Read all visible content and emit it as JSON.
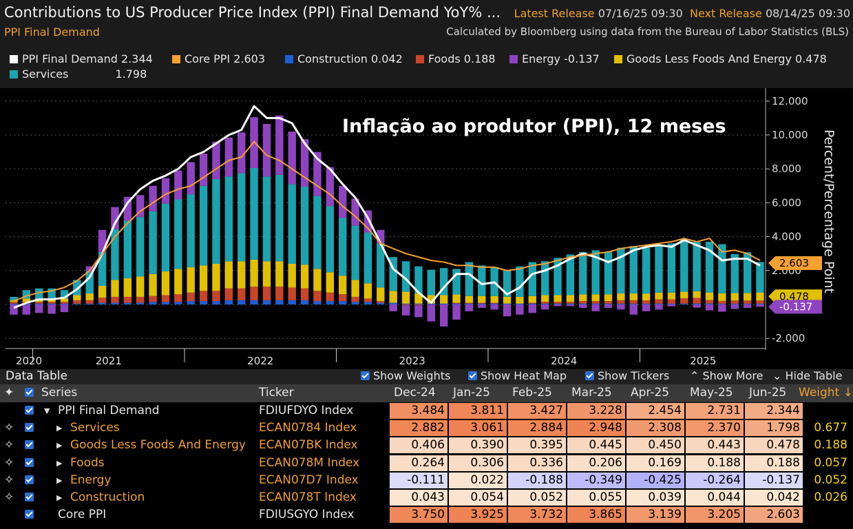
{
  "header": {
    "title": "Contributions to US Producer Price Index (PPI) Final Demand YoY% ...",
    "latest_label": "Latest Release",
    "latest_value": "07/16/25 09:30",
    "next_label": "Next Release",
    "next_value": "08/14/25 09:30",
    "subtitle": "PPI Final Demand",
    "calculated": "Calculated by Bloomberg using data from the Bureau of Labor Statistics (BLS)"
  },
  "legend": [
    {
      "name": "PPI Final Demand",
      "value": "2.344",
      "color": "#ffffff"
    },
    {
      "name": "Core PPI",
      "value": "2.603",
      "color": "#f5a030"
    },
    {
      "name": "Construction",
      "value": "0.042",
      "color": "#1f5fd6"
    },
    {
      "name": "Foods",
      "value": "0.188",
      "color": "#c8452a"
    },
    {
      "name": "Energy",
      "value": "-0.137",
      "color": "#8e44c0"
    },
    {
      "name": "Goods Less Foods And Energy",
      "value": "0.478",
      "color": "#e0c000"
    },
    {
      "name": "Services",
      "value": "1.798",
      "color": "#1ba3b0"
    }
  ],
  "overlay_text": "Inflação ao produtor (PPI), 12 meses",
  "chart_data": {
    "type": "bar",
    "stacked": true,
    "ylabel": "Percent/Percentage Point",
    "ylim": [
      -2.6,
      12.6
    ],
    "yticks": [
      "12.000",
      "10.000",
      "8.000",
      "6.000",
      "4.000",
      "2.000",
      "-2.000"
    ],
    "xticks": [
      "2020",
      "2021",
      "2022",
      "2023",
      "2024",
      "2025"
    ],
    "axis_tags": [
      {
        "value": "2.603",
        "color": "#f5a030",
        "text_color": "#000000"
      },
      {
        "value": "0.478",
        "color": "#e0c000",
        "text_color": "#000000"
      },
      {
        "value": "-0.137",
        "color": "#8e44c0",
        "text_color": "#ffffff"
      }
    ],
    "series_order": [
      "Construction",
      "Foods",
      "Goods Less Foods And Energy",
      "Services",
      "Energy"
    ],
    "series": [
      {
        "name": "Services",
        "color": "#1ba3b0",
        "values": [
          0.2,
          0.5,
          0.6,
          0.6,
          0.5,
          0.9,
          1.3,
          2.0,
          3.0,
          3.4,
          3.5,
          3.7,
          4.0,
          4.1,
          4.3,
          4.7,
          5.0,
          5.0,
          5.2,
          5.4,
          5.0,
          5.1,
          4.7,
          4.6,
          4.3,
          3.9,
          3.4,
          3.2,
          3.0,
          2.6,
          2.0,
          1.8,
          1.6,
          1.5,
          1.6,
          1.5,
          2.0,
          1.8,
          1.7,
          1.6,
          1.8,
          2.0,
          2.0,
          2.2,
          2.4,
          2.5,
          2.6,
          2.5,
          2.7,
          2.8,
          2.7,
          2.8,
          2.9,
          3.1,
          2.9,
          3.0,
          2.9,
          2.3,
          2.4,
          1.8
        ]
      },
      {
        "name": "Goods Less Foods And Energy",
        "color": "#e0c000",
        "values": [
          0.1,
          0.2,
          0.2,
          0.2,
          0.2,
          0.3,
          0.4,
          0.7,
          1.0,
          1.1,
          1.2,
          1.3,
          1.4,
          1.5,
          1.5,
          1.5,
          1.6,
          1.6,
          1.6,
          1.6,
          1.5,
          1.5,
          1.4,
          1.4,
          1.3,
          1.2,
          1.1,
          1.0,
          0.9,
          0.8,
          0.7,
          0.7,
          0.6,
          0.5,
          0.5,
          0.5,
          0.4,
          0.4,
          0.4,
          0.4,
          0.4,
          0.4,
          0.4,
          0.4,
          0.4,
          0.4,
          0.4,
          0.4,
          0.4,
          0.4,
          0.4,
          0.4,
          0.4,
          0.39,
          0.395,
          0.445,
          0.45,
          0.443,
          0.45,
          0.478
        ]
      },
      {
        "name": "Foods",
        "color": "#c8452a",
        "values": [
          0.1,
          0.1,
          0.1,
          0.1,
          0.1,
          0.2,
          0.2,
          0.3,
          0.35,
          0.35,
          0.35,
          0.35,
          0.4,
          0.45,
          0.5,
          0.6,
          0.6,
          0.7,
          0.7,
          0.8,
          0.8,
          0.8,
          0.75,
          0.7,
          0.6,
          0.5,
          0.4,
          0.3,
          0.2,
          0.1,
          0.0,
          -0.05,
          -0.05,
          0.0,
          0.0,
          0.05,
          0.05,
          0.05,
          0.05,
          0.0,
          0.0,
          0.05,
          0.1,
          0.1,
          0.1,
          0.15,
          0.15,
          0.15,
          0.2,
          0.2,
          0.2,
          0.25,
          0.26,
          0.306,
          0.336,
          0.206,
          0.169,
          0.188,
          0.19,
          0.188
        ]
      },
      {
        "name": "Construction",
        "color": "#1f5fd6",
        "values": [
          0.05,
          0.05,
          0.05,
          0.05,
          0.05,
          0.05,
          0.05,
          0.1,
          0.1,
          0.1,
          0.1,
          0.15,
          0.15,
          0.15,
          0.2,
          0.2,
          0.2,
          0.25,
          0.25,
          0.25,
          0.25,
          0.25,
          0.25,
          0.25,
          0.2,
          0.2,
          0.2,
          0.15,
          0.15,
          0.1,
          0.1,
          0.05,
          0.05,
          0.05,
          0.05,
          0.05,
          0.05,
          0.05,
          0.05,
          0.05,
          0.05,
          0.05,
          0.05,
          0.05,
          0.05,
          0.05,
          0.05,
          0.05,
          0.05,
          0.05,
          0.045,
          0.05,
          0.043,
          0.054,
          0.052,
          0.055,
          0.039,
          0.044,
          0.04,
          0.042
        ]
      },
      {
        "name": "Energy",
        "color": "#8e44c0",
        "values": [
          -0.6,
          -0.6,
          -0.5,
          -0.55,
          -0.45,
          0.0,
          0.3,
          1.3,
          1.3,
          1.4,
          1.3,
          1.5,
          1.5,
          1.7,
          1.9,
          1.9,
          2.2,
          2.3,
          2.4,
          3.0,
          3.1,
          3.5,
          3.1,
          2.8,
          2.6,
          2.3,
          1.9,
          1.6,
          1.3,
          0.8,
          -0.4,
          -0.6,
          -0.7,
          -1.0,
          -1.3,
          -0.9,
          -0.4,
          -0.2,
          -0.3,
          -0.7,
          -0.6,
          -0.5,
          -0.3,
          -0.1,
          -0.1,
          -0.2,
          -0.4,
          -0.2,
          -0.3,
          -0.6,
          -0.4,
          -0.3,
          -0.111,
          0.022,
          -0.188,
          -0.349,
          -0.425,
          -0.264,
          -0.2,
          -0.137
        ]
      }
    ],
    "lines": [
      {
        "name": "PPI Final Demand",
        "color": "#ffffff",
        "values": [
          -0.2,
          0.1,
          0.3,
          0.3,
          0.4,
          0.9,
          1.6,
          3.0,
          4.8,
          6.0,
          6.8,
          7.3,
          7.6,
          8.0,
          8.7,
          9.0,
          9.5,
          10.0,
          10.3,
          11.7,
          11.0,
          11.0,
          10.7,
          9.5,
          8.6,
          8.0,
          7.1,
          6.3,
          5.1,
          3.6,
          2.1,
          1.5,
          0.7,
          0.1,
          1.0,
          1.8,
          1.8,
          1.2,
          1.3,
          0.6,
          1.0,
          1.8,
          2.0,
          2.3,
          2.7,
          3.0,
          2.8,
          2.5,
          2.8,
          3.2,
          3.4,
          3.5,
          3.4,
          3.8,
          3.5,
          3.2,
          2.6,
          2.7,
          2.7,
          2.3
        ]
      },
      {
        "name": "Core PPI",
        "color": "#f5a030",
        "values": [
          0.2,
          0.5,
          0.7,
          0.8,
          1.0,
          1.4,
          2.0,
          3.0,
          4.0,
          4.8,
          5.5,
          6.0,
          6.5,
          6.8,
          7.0,
          7.5,
          8.0,
          8.5,
          8.7,
          9.6,
          8.8,
          8.5,
          8.0,
          7.5,
          7.0,
          6.5,
          5.8,
          5.2,
          4.5,
          3.6,
          3.3,
          3.0,
          2.8,
          2.6,
          2.5,
          2.3,
          2.3,
          2.2,
          2.2,
          2.0,
          2.1,
          2.3,
          2.4,
          2.6,
          2.8,
          2.9,
          3.0,
          3.1,
          3.3,
          3.4,
          3.5,
          3.6,
          3.7,
          3.9,
          3.7,
          3.9,
          3.1,
          3.2,
          3.0,
          2.6
        ]
      }
    ]
  },
  "data_table": {
    "title": "Data Table",
    "options": [
      "Show Weights",
      "Show Heat Map",
      "Show Tickers",
      "Show More",
      "Hide Table"
    ],
    "headers": {
      "series": "Series",
      "ticker": "Ticker",
      "months": [
        "Dec-24",
        "Jan-25",
        "Feb-25",
        "Mar-25",
        "Apr-25",
        "May-25",
        "Jun-25"
      ],
      "weight": "Weight"
    },
    "rows": [
      {
        "series": "PPI Final Demand",
        "ticker": "FDIUFDYO Index",
        "values": [
          "3.484",
          "3.811",
          "3.427",
          "3.228",
          "2.454",
          "2.731",
          "2.344"
        ],
        "weight": ""
      },
      {
        "series": "Services",
        "ticker": "ECAN0784 Index",
        "values": [
          "2.882",
          "3.061",
          "2.884",
          "2.948",
          "2.308",
          "2.370",
          "1.798"
        ],
        "weight": "0.677"
      },
      {
        "series": "Goods Less Foods And Energy",
        "ticker": "ECAN07BK Index",
        "values": [
          "0.406",
          "0.390",
          "0.395",
          "0.445",
          "0.450",
          "0.443",
          "0.478"
        ],
        "weight": "0.188"
      },
      {
        "series": "Foods",
        "ticker": "ECAN078M Index",
        "values": [
          "0.264",
          "0.306",
          "0.336",
          "0.206",
          "0.169",
          "0.188",
          "0.188"
        ],
        "weight": "0.057"
      },
      {
        "series": "Energy",
        "ticker": "ECAN07D7 Index",
        "values": [
          "-0.111",
          "0.022",
          "-0.188",
          "-0.349",
          "-0.425",
          "-0.264",
          "-0.137"
        ],
        "weight": "0.052"
      },
      {
        "series": "Construction",
        "ticker": "ECAN078T Index",
        "values": [
          "0.043",
          "0.054",
          "0.052",
          "0.055",
          "0.039",
          "0.044",
          "0.042"
        ],
        "weight": "0.026"
      },
      {
        "series": "Core PPI",
        "ticker": "FDIUSGYO Index",
        "values": [
          "3.750",
          "3.925",
          "3.732",
          "3.865",
          "3.139",
          "3.205",
          "2.603"
        ],
        "weight": ""
      }
    ]
  }
}
